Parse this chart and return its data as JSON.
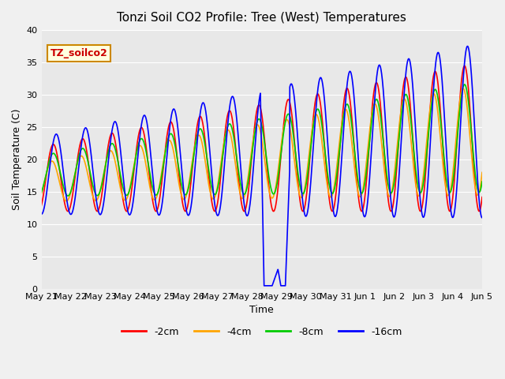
{
  "title": "Tonzi Soil CO2 Profile: Tree (West) Temperatures",
  "xlabel": "Time",
  "ylabel": "Soil Temperature (C)",
  "ylim": [
    0,
    40
  ],
  "legend_label": "TZ_soilco2",
  "series_labels": [
    "-2cm",
    "-4cm",
    "-8cm",
    "-16cm"
  ],
  "series_colors": [
    "#ff0000",
    "#ffa500",
    "#00cc00",
    "#0000ff"
  ],
  "tick_labels": [
    "May 21",
    "May 22",
    "May 23",
    "May 24",
    "May 25",
    "May 26",
    "May 27",
    "May 28",
    "May 29",
    "May 30",
    "May 31",
    "Jun 1",
    "Jun 2",
    "Jun 3",
    "Jun 4",
    "Jun 5"
  ]
}
